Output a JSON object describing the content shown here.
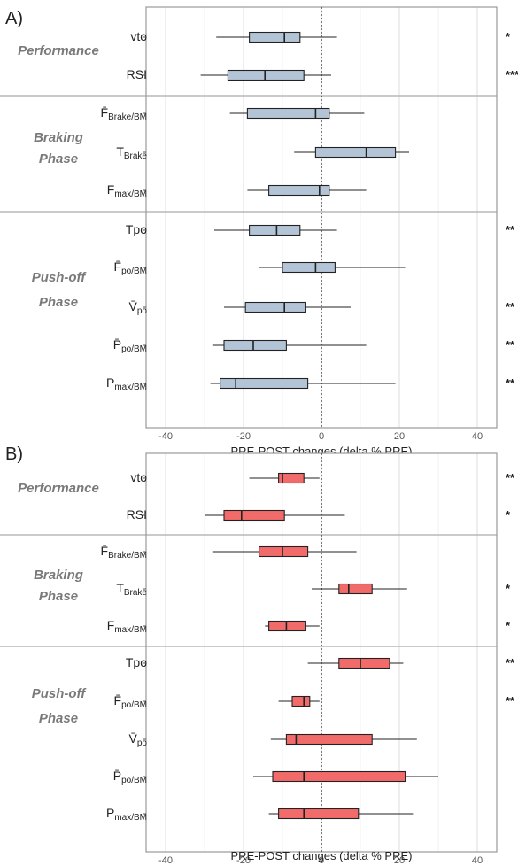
{
  "chart_data": [
    {
      "type": "boxplot",
      "panel_label": "A)",
      "xlabel": "PRE-POST changes (delta % PRE)",
      "xlim": [
        -45,
        45
      ],
      "xticks": [
        -40,
        -20,
        0,
        20,
        40
      ],
      "reference_line": 0,
      "grid": true,
      "box_color": "#b3c4d6",
      "groups": [
        {
          "label_lines": [
            "Performance"
          ],
          "rows": [
            {
              "label": {
                "base": "vto",
                "sub": ""
              },
              "whisker_low": -27,
              "q1": -18.5,
              "median": -9.5,
              "q3": -5.5,
              "whisker_high": 4,
              "sig": "*"
            },
            {
              "label": {
                "base": "RSI",
                "sub": ""
              },
              "whisker_low": -31,
              "q1": -24,
              "median": -14.5,
              "q3": -4.5,
              "whisker_high": 2.5,
              "sig": "***"
            }
          ]
        },
        {
          "label_lines": [
            "Braking",
            "Phase"
          ],
          "rows": [
            {
              "label": {
                "base": "F̄",
                "sub": "Brake/BM"
              },
              "whisker_low": -23.5,
              "q1": -19,
              "median": -1.5,
              "q3": 2,
              "whisker_high": 11,
              "sig": ""
            },
            {
              "label": {
                "base": "T",
                "sub": "Brake"
              },
              "whisker_low": -7,
              "q1": -1.5,
              "median": 11.5,
              "q3": 19,
              "whisker_high": 22.5,
              "sig": ""
            },
            {
              "label": {
                "base": "F",
                "sub": "max/BM"
              },
              "whisker_low": -19,
              "q1": -13.5,
              "median": -0.5,
              "q3": 2,
              "whisker_high": 11.5,
              "sig": ""
            }
          ]
        },
        {
          "label_lines": [
            "Push-off",
            "Phase"
          ],
          "rows": [
            {
              "label": {
                "base": "Tpo",
                "sub": ""
              },
              "whisker_low": -27.5,
              "q1": -18.5,
              "median": -11.5,
              "q3": -5.5,
              "whisker_high": 4,
              "sig": "**"
            },
            {
              "label": {
                "base": "F̄",
                "sub": "po/BM"
              },
              "whisker_low": -16,
              "q1": -10,
              "median": -1.5,
              "q3": 3.5,
              "whisker_high": 21.5,
              "sig": ""
            },
            {
              "label": {
                "base": "V̄",
                "sub": "po"
              },
              "whisker_low": -25,
              "q1": -19.5,
              "median": -9.5,
              "q3": -4,
              "whisker_high": 7.5,
              "sig": "**"
            },
            {
              "label": {
                "base": "P̄",
                "sub": "po/BM"
              },
              "whisker_low": -28,
              "q1": -25,
              "median": -17.5,
              "q3": -9,
              "whisker_high": 11.5,
              "sig": "**"
            },
            {
              "label": {
                "base": "P",
                "sub": "max/BM"
              },
              "whisker_low": -28.5,
              "q1": -26,
              "median": -22,
              "q3": -3.5,
              "whisker_high": 19,
              "sig": "**"
            }
          ]
        }
      ]
    },
    {
      "type": "boxplot",
      "panel_label": "B)",
      "xlabel": "PRE-POST changes (delta % PRE)",
      "xlim": [
        -45,
        45
      ],
      "xticks": [
        -40,
        -20,
        0,
        20,
        40
      ],
      "reference_line": 0,
      "grid": true,
      "box_color": "#f26b6b",
      "groups": [
        {
          "label_lines": [
            "Performance"
          ],
          "rows": [
            {
              "label": {
                "base": "vto",
                "sub": ""
              },
              "whisker_low": -18.5,
              "q1": -11,
              "median": -10,
              "q3": -4.5,
              "whisker_high": -0.5,
              "sig": "**"
            },
            {
              "label": {
                "base": "RSI",
                "sub": ""
              },
              "whisker_low": -30,
              "q1": -25,
              "median": -20.5,
              "q3": -9.5,
              "whisker_high": 6,
              "sig": "*"
            }
          ]
        },
        {
          "label_lines": [
            "Braking",
            "Phase"
          ],
          "rows": [
            {
              "label": {
                "base": "F̄",
                "sub": "Brake/BM"
              },
              "whisker_low": -28,
              "q1": -16,
              "median": -10,
              "q3": -3.5,
              "whisker_high": 9,
              "sig": ""
            },
            {
              "label": {
                "base": "T",
                "sub": "Brake"
              },
              "whisker_low": -2.5,
              "q1": 4.5,
              "median": 7,
              "q3": 13,
              "whisker_high": 22,
              "sig": "*"
            },
            {
              "label": {
                "base": "F",
                "sub": "max/BM"
              },
              "whisker_low": -14.5,
              "q1": -13.5,
              "median": -9,
              "q3": -4,
              "whisker_high": -0.5,
              "sig": "*"
            }
          ]
        },
        {
          "label_lines": [
            "Push-off",
            "Phase"
          ],
          "rows": [
            {
              "label": {
                "base": "Tpo",
                "sub": ""
              },
              "whisker_low": -3.5,
              "q1": 4.5,
              "median": 10,
              "q3": 17.5,
              "whisker_high": 21,
              "sig": "**"
            },
            {
              "label": {
                "base": "F̄",
                "sub": "po/BM"
              },
              "whisker_low": -11,
              "q1": -7.5,
              "median": -4.5,
              "q3": -3,
              "whisker_high": -0.5,
              "sig": "**"
            },
            {
              "label": {
                "base": "V̄",
                "sub": "po"
              },
              "whisker_low": -13,
              "q1": -9,
              "median": -6.5,
              "q3": 13,
              "whisker_high": 24.5,
              "sig": ""
            },
            {
              "label": {
                "base": "P̄",
                "sub": "po/BM"
              },
              "whisker_low": -17.5,
              "q1": -12.5,
              "median": -4.5,
              "q3": 21.5,
              "whisker_high": 30,
              "sig": ""
            },
            {
              "label": {
                "base": "P",
                "sub": "max/BM"
              },
              "whisker_low": -13.5,
              "q1": -11,
              "median": -4.5,
              "q3": 9.5,
              "whisker_high": 23.5,
              "sig": ""
            }
          ]
        }
      ]
    }
  ]
}
